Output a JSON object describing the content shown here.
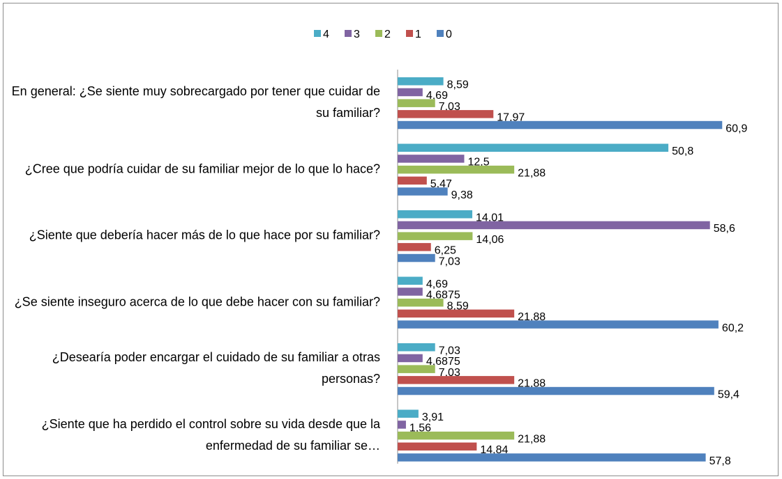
{
  "chart_data": {
    "type": "bar",
    "orientation": "horizontal",
    "categories": [
      "En general: ¿Se siente muy sobrecargado por tener que cuidar de su familiar?",
      "¿Cree que podría cuidar de su familiar mejor de lo que lo hace?",
      "¿Siente que debería hacer más de lo que hace por su familiar?",
      "¿Se siente inseguro acerca de lo que debe hacer con su familiar?",
      "¿Desearía poder encargar el cuidado de su familiar a otras personas?",
      "¿Siente que ha perdido el control sobre su vida desde que la enfermedad de su familiar se…"
    ],
    "series": [
      {
        "name": "4",
        "color": "#4bacc6",
        "values": [
          8.59,
          50.8,
          14.01,
          4.69,
          7.03,
          3.91
        ],
        "value_labels": [
          "8,59",
          "50,8",
          "14,01",
          "4,69",
          "7,03",
          "3,91"
        ]
      },
      {
        "name": "3",
        "color": "#8064a2",
        "values": [
          4.69,
          12.5,
          58.6,
          4.6875,
          4.6875,
          1.56
        ],
        "value_labels": [
          "4,69",
          "12,5",
          "58,6",
          "4,6875",
          "4,6875",
          "1,56"
        ]
      },
      {
        "name": "2",
        "color": "#9bbb59",
        "values": [
          7.03,
          21.88,
          14.06,
          8.59,
          7.03,
          21.88
        ],
        "value_labels": [
          "7,03",
          "21,88",
          "14,06",
          "8,59",
          "7,03",
          "21,88"
        ]
      },
      {
        "name": "1",
        "color": "#c0504d",
        "values": [
          17.97,
          5.47,
          6.25,
          21.88,
          21.88,
          14.84
        ],
        "value_labels": [
          "17,97",
          "5,47",
          "6,25",
          "21,88",
          "21,88",
          "14,84"
        ]
      },
      {
        "name": "0",
        "color": "#4f81bd",
        "values": [
          60.9,
          9.38,
          7.03,
          60.2,
          59.4,
          57.8
        ],
        "value_labels": [
          "60,9",
          "9,38",
          "7,03",
          "60,2",
          "59,4",
          "57,8"
        ]
      }
    ],
    "legend": "top"
  }
}
